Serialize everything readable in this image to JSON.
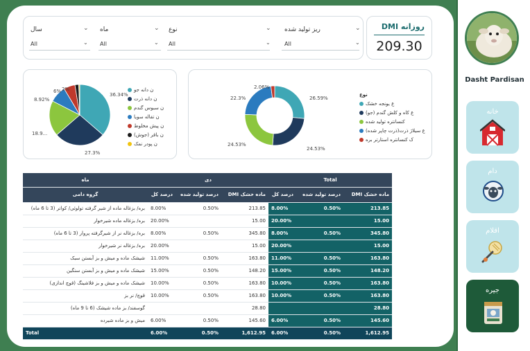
{
  "kpi": {
    "title": "DMI روزانه",
    "value": "209.30"
  },
  "filters": [
    {
      "title": "سال",
      "value": "All"
    },
    {
      "title": "ماه",
      "value": "All"
    },
    {
      "title": "نوع",
      "value": "All"
    },
    {
      "title": "ریز تولید شده",
      "value": "All"
    }
  ],
  "pie_left": {
    "legend": [
      {
        "label": "ن دانه جو",
        "color": "#3fa7b5"
      },
      {
        "label": "ن دانه ذرت",
        "color": "#1f3a5c"
      },
      {
        "label": "ن سبوس گندم",
        "color": "#8cc63e"
      },
      {
        "label": "ن تفاله سویا",
        "color": "#2b7bbf"
      },
      {
        "label": "ن پیش مخلوط",
        "color": "#c0392b"
      },
      {
        "label": "ن باقر (جوش)",
        "color": "#1a1a1a"
      },
      {
        "label": "ن پودر نمک",
        "color": "#f1c40f"
      }
    ],
    "labels": [
      "36.34%",
      "27.3%",
      "18.9...",
      "8.92%",
      "6%",
      "2%"
    ]
  },
  "donut_right": {
    "legend_title": "نوع",
    "legend": [
      {
        "label": "ع یونجه خشک",
        "color": "#3fa7b5"
      },
      {
        "label": "ع کاه و کلش گندم (جو)",
        "color": "#1f3a5c"
      },
      {
        "label": "کنسانتره تولید شده",
        "color": "#8cc63e"
      },
      {
        "label": "ع سیلاژ ذرت(ذرت چاپر شده)",
        "color": "#2b7bbf"
      },
      {
        "label": "ک کنسانتره استارتر بره",
        "color": "#c0392b"
      }
    ],
    "labels": [
      "2.06%",
      "26.59%",
      "22.3%",
      "24.53%",
      "24.53%"
    ]
  },
  "chart_data": [
    {
      "type": "pie",
      "categories": [
        "ن دانه جو",
        "ن دانه ذرت",
        "ن سبوس گندم",
        "ن تفاله سویا",
        "ن پیش مخلوط",
        "ن باقر (جوش)",
        "ن پودر نمک"
      ],
      "values": [
        36.34,
        27.3,
        18.9,
        8.92,
        6,
        2,
        0.54
      ]
    },
    {
      "type": "pie",
      "donut": true,
      "categories": [
        "ع یونجه خشک",
        "ع کاه و کلش گندم (جو)",
        "کنسانتره تولید شده",
        "ع سیلاژ ذرت(ذرت چاپر شده)",
        "ک کنسانتره استارتر بره"
      ],
      "values": [
        26.59,
        24.53,
        24.53,
        22.3,
        2.06
      ]
    }
  ],
  "table": {
    "h_month": "ماه",
    "h_group": "گروه دامی",
    "h_dey": "دی",
    "h_total": "Total",
    "cols": [
      "درصد کل",
      "درصد تولید شده",
      "DMI ماده خشک"
    ],
    "rows": [
      {
        "name": "بره/ بزغاله ماده از شیر گرفته تولوئی/ کواتر (3 تا 6 ماه)",
        "d": [
          "8.00%",
          "0.50%",
          "213.85"
        ],
        "t": [
          "8.00%",
          "0.50%",
          "213.85"
        ]
      },
      {
        "name": "بره/ بزغاله ماده شیرخوار",
        "d": [
          "20.00%",
          "",
          "15.00"
        ],
        "t": [
          "20.00%",
          "",
          "15.00"
        ]
      },
      {
        "name": "بره/ بزغاله نر از شیرگرفته پروار (3 تا 6 ماه)",
        "d": [
          "8.00%",
          "0.50%",
          "345.80"
        ],
        "t": [
          "8.00%",
          "0.50%",
          "345.80"
        ]
      },
      {
        "name": "بره/ بزغاله نر شیرخوار",
        "d": [
          "20.00%",
          "",
          "15.00"
        ],
        "t": [
          "20.00%",
          "",
          "15.00"
        ]
      },
      {
        "name": "شیشک ماده و میش و بز آبستن سبک",
        "d": [
          "11.00%",
          "0.50%",
          "163.80"
        ],
        "t": [
          "11.00%",
          "0.50%",
          "163.80"
        ]
      },
      {
        "name": "شیشک ماده و میش و بز آبستن سنگین",
        "d": [
          "15.00%",
          "0.50%",
          "148.20"
        ],
        "t": [
          "15.00%",
          "0.50%",
          "148.20"
        ]
      },
      {
        "name": "شیشک ماده و میش و بز فلاشینگ (قوچ اندازی)",
        "d": [
          "10.00%",
          "0.50%",
          "163.80"
        ],
        "t": [
          "10.00%",
          "0.50%",
          "163.80"
        ]
      },
      {
        "name": "قوچ/ نر بز",
        "d": [
          "10.00%",
          "0.50%",
          "163.80"
        ],
        "t": [
          "10.00%",
          "0.50%",
          "163.80"
        ]
      },
      {
        "name": "گوسفند/ بز ماده شیشک (6 تا 9 ماه)",
        "d": [
          "",
          "",
          "28.80"
        ],
        "t": [
          "",
          "",
          "28.80"
        ]
      },
      {
        "name": "میش و بز ماده شیرده",
        "d": [
          "6.00%",
          "0.50%",
          "145.60"
        ],
        "t": [
          "6.00%",
          "0.50%",
          "145.60"
        ]
      }
    ],
    "total_label": "Total",
    "total_d": [
      "6.00%",
      "0.50%",
      "1,612.95"
    ],
    "total_t": [
      "6.00%",
      "0.50%",
      "1,612.95"
    ]
  },
  "sidebar": {
    "brand": "Dasht Pardisan",
    "nav": [
      {
        "label": "خانه",
        "icon": "barn-icon"
      },
      {
        "label": "دام",
        "icon": "sheep-icon"
      },
      {
        "label": "اقلام",
        "icon": "grain-icon"
      },
      {
        "label": "جیره",
        "icon": "feed-bag-icon"
      }
    ]
  }
}
